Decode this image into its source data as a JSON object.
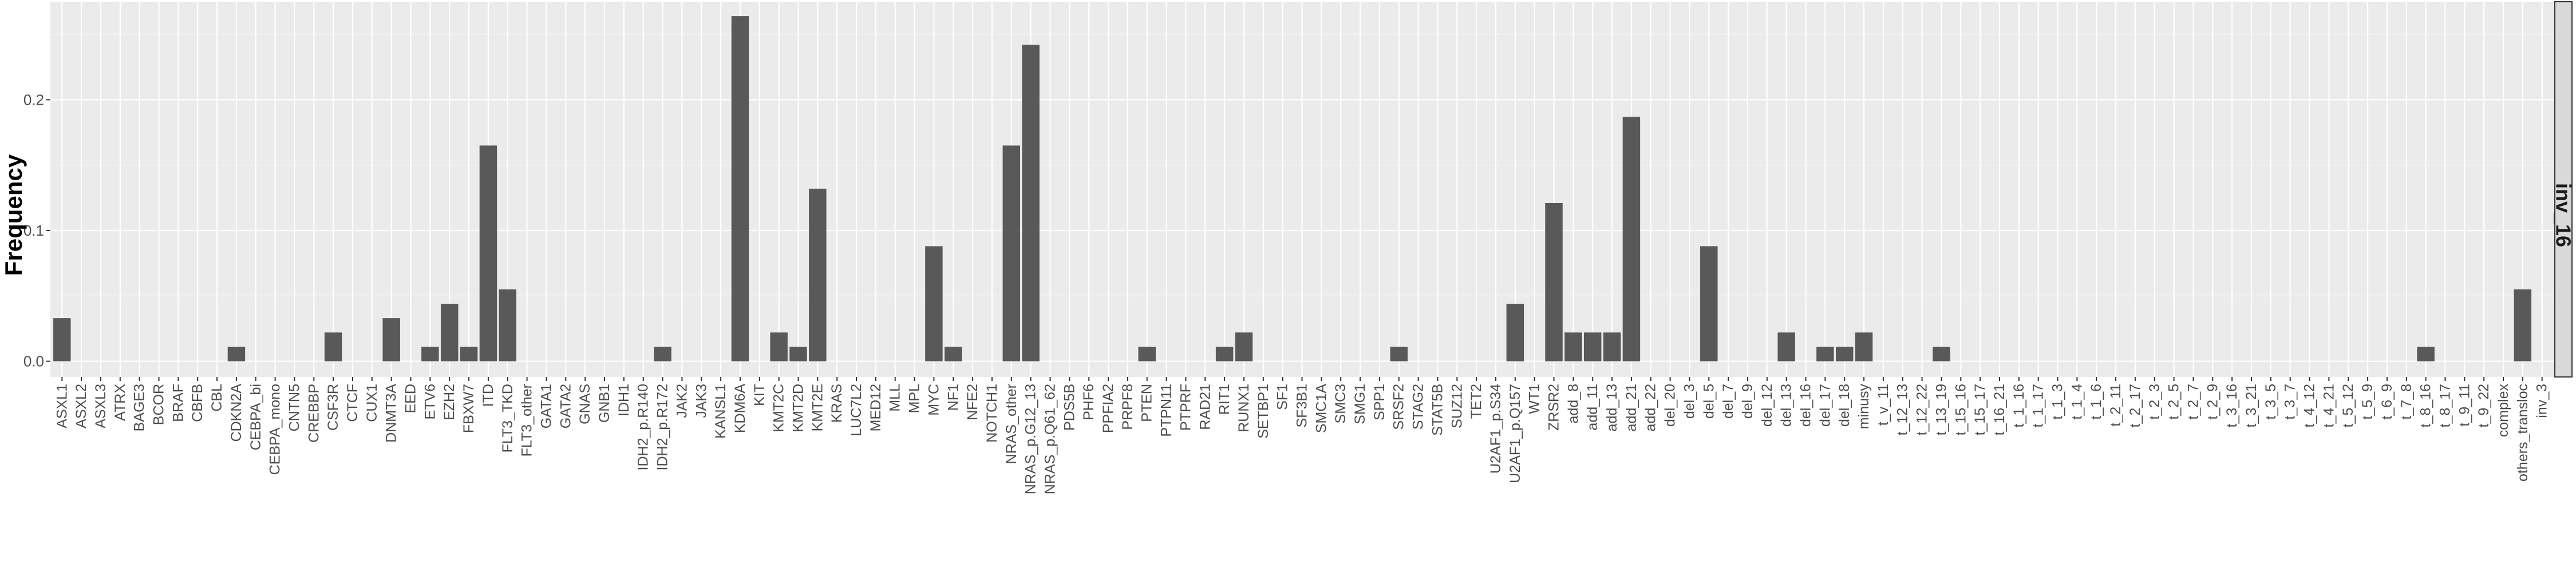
{
  "chart_data": {
    "type": "bar",
    "title": "",
    "xlabel": "",
    "ylabel": "Frequency",
    "facet_label": "inv_16",
    "ylim": [
      -0.012,
      0.275
    ],
    "yticks": [
      0.0,
      0.1,
      0.2
    ],
    "ytick_labels": [
      "0.0",
      "0.1",
      "0.2"
    ],
    "grid": true,
    "colors": {
      "panel": "#ebebeb",
      "grid_major": "#ffffff",
      "grid_minor": "#f5f5f5",
      "bar": "#595959",
      "strip": "#d9d9d9",
      "axis_text": "#4d4d4d"
    },
    "categories": [
      "ASXL1",
      "ASXL2",
      "ASXL3",
      "ATRX",
      "BAGE3",
      "BCOR",
      "BRAF",
      "CBFB",
      "CBL",
      "CDKN2A",
      "CEBPA_bi",
      "CEBPA_mono",
      "CNTN5",
      "CREBBP",
      "CSF3R",
      "CTCF",
      "CUX1",
      "DNMT3A",
      "EED",
      "ETV6",
      "EZH2",
      "FBXW7",
      "ITD",
      "FLT3_TKD",
      "FLT3_other",
      "GATA1",
      "GATA2",
      "GNAS",
      "GNB1",
      "IDH1",
      "IDH2_p.R140",
      "IDH2_p.R172",
      "JAK2",
      "JAK3",
      "KANSL1",
      "KDM6A",
      "KIT",
      "KMT2C",
      "KMT2D",
      "KMT2E",
      "KRAS",
      "LUC7L2",
      "MED12",
      "MLL",
      "MPL",
      "MYC",
      "NF1",
      "NFE2",
      "NOTCH1",
      "NRAS_other",
      "NRAS_p.G12_13",
      "NRAS_p.Q61_62",
      "PDS5B",
      "PHF6",
      "PPFIA2",
      "PRPF8",
      "PTEN",
      "PTPN11",
      "PTPRF",
      "RAD21",
      "RIT1",
      "RUNX1",
      "SETBP1",
      "SF1",
      "SF3B1",
      "SMC1A",
      "SMC3",
      "SMG1",
      "SPP1",
      "SRSF2",
      "STAG2",
      "STAT5B",
      "SUZ12",
      "TET2",
      "U2AF1_p.S34",
      "U2AF1_p.Q157",
      "WT1",
      "ZRSR2",
      "add_8",
      "add_11",
      "add_13",
      "add_21",
      "add_22",
      "del_20",
      "del_3",
      "del_5",
      "del_7",
      "del_9",
      "del_12",
      "del_13",
      "del_16",
      "del_17",
      "del_18",
      "minusy",
      "t_v_11",
      "t_12_13",
      "t_12_22",
      "t_13_19",
      "t_15_16",
      "t_15_17",
      "t_16_21",
      "t_1_16",
      "t_1_17",
      "t_1_3",
      "t_1_4",
      "t_1_6",
      "t_2_11",
      "t_2_17",
      "t_2_3",
      "t_2_5",
      "t_2_7",
      "t_2_9",
      "t_3_16",
      "t_3_21",
      "t_3_5",
      "t_3_7",
      "t_4_12",
      "t_4_21",
      "t_5_12",
      "t_5_9",
      "t_6_9",
      "t_7_8",
      "t_8_16",
      "t_8_17",
      "t_9_11",
      "t_9_22",
      "complex",
      "others_transloc",
      "inv_3"
    ],
    "values": [
      0.033,
      0,
      0,
      0,
      0,
      0,
      0,
      0,
      0,
      0.011,
      0,
      0,
      0,
      0,
      0.022,
      0,
      0,
      0.033,
      0,
      0.011,
      0.044,
      0.011,
      0.165,
      0.055,
      0,
      0,
      0,
      0,
      0,
      0,
      0,
      0.011,
      0,
      0,
      0,
      0.264,
      0,
      0.022,
      0.011,
      0.132,
      0,
      0,
      0,
      0,
      0,
      0.088,
      0.011,
      0,
      0,
      0.165,
      0.242,
      0,
      0,
      0,
      0,
      0,
      0.011,
      0,
      0,
      0,
      0.011,
      0.022,
      0,
      0,
      0,
      0,
      0,
      0,
      0,
      0.011,
      0,
      0,
      0,
      0,
      0,
      0.044,
      0,
      0.121,
      0.022,
      0.022,
      0.022,
      0.187,
      0,
      0,
      0,
      0.088,
      0,
      0,
      0,
      0.022,
      0,
      0.011,
      0.011,
      0.022,
      0,
      0,
      0,
      0.011,
      0,
      0,
      0,
      0,
      0,
      0,
      0,
      0,
      0,
      0,
      0,
      0,
      0,
      0,
      0,
      0,
      0,
      0,
      0,
      0,
      0,
      0,
      0,
      0,
      0.011,
      0,
      0,
      0,
      0,
      0.055,
      0
    ]
  }
}
